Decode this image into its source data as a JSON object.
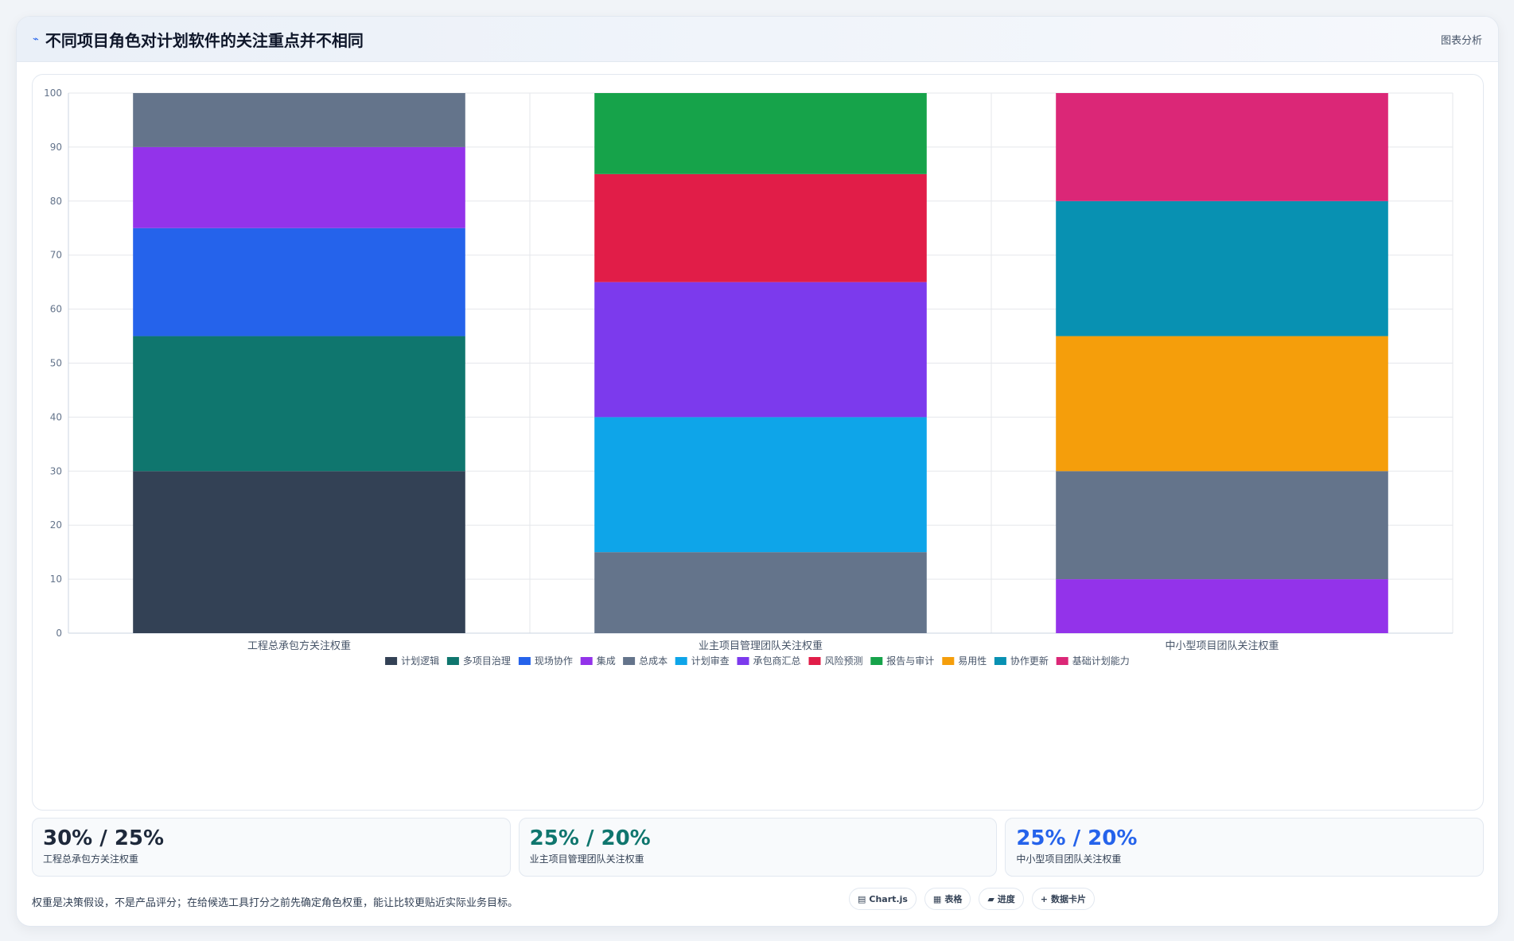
{
  "header": {
    "icon": "chart-line-icon",
    "title": "不同项目角色对计划软件的关注重点并不相同",
    "tag": "图表分析"
  },
  "chart_data": {
    "type": "bar",
    "stacked": true,
    "categories": [
      "工程总承包方关注权重",
      "业主项目管理团队关注权重",
      "中小型项目团队关注权重"
    ],
    "ylim": [
      0,
      100
    ],
    "yticks": [
      0,
      10,
      20,
      30,
      40,
      50,
      60,
      70,
      80,
      90,
      100
    ],
    "grid": true,
    "legend_position": "bottom",
    "series": [
      {
        "name": "计划逻辑",
        "color": "#334155",
        "values": [
          30,
          0,
          0
        ]
      },
      {
        "name": "多项目治理",
        "color": "#0f766e",
        "values": [
          25,
          0,
          0
        ]
      },
      {
        "name": "现场协作",
        "color": "#2563eb",
        "values": [
          20,
          0,
          0
        ]
      },
      {
        "name": "集成",
        "color": "#9333ea",
        "values": [
          15,
          0,
          10
        ]
      },
      {
        "name": "总成本",
        "color": "#64748b",
        "values": [
          10,
          15,
          20
        ]
      },
      {
        "name": "计划审查",
        "color": "#0ea5e9",
        "values": [
          0,
          25,
          0
        ]
      },
      {
        "name": "承包商汇总",
        "color": "#7c3aed",
        "values": [
          0,
          25,
          0
        ]
      },
      {
        "name": "风险预测",
        "color": "#e11d48",
        "values": [
          0,
          20,
          0
        ]
      },
      {
        "name": "报告与审计",
        "color": "#16a34a",
        "values": [
          0,
          15,
          0
        ]
      },
      {
        "name": "易用性",
        "color": "#f59e0b",
        "values": [
          0,
          0,
          25
        ]
      },
      {
        "name": "协作更新",
        "color": "#0891b2",
        "values": [
          0,
          0,
          25
        ]
      },
      {
        "name": "基础计划能力",
        "color": "#db2777",
        "values": [
          0,
          0,
          20
        ]
      }
    ]
  },
  "stats": [
    {
      "value": "30% / 25%",
      "label": "工程总承包方关注权重",
      "color": "#1e293b"
    },
    {
      "value": "25% / 20%",
      "label": "业主项目管理团队关注权重",
      "color": "#0f766e"
    },
    {
      "value": "25% / 20%",
      "label": "中小型项目团队关注权重",
      "color": "#2563eb"
    }
  ],
  "footnote": "权重是决策假设，不是产品评分；在给候选工具打分之前先确定角色权重，能让比较更贴近实际业务目标。",
  "chips": [
    {
      "icon": "chart-icon",
      "glyph": "▤",
      "label": "Chart.js"
    },
    {
      "icon": "table-icon",
      "glyph": "▦",
      "label": "表格"
    },
    {
      "icon": "progress-icon",
      "glyph": "▰",
      "label": "进度"
    },
    {
      "icon": "card-icon",
      "glyph": "+",
      "label": "数据卡片"
    }
  ]
}
